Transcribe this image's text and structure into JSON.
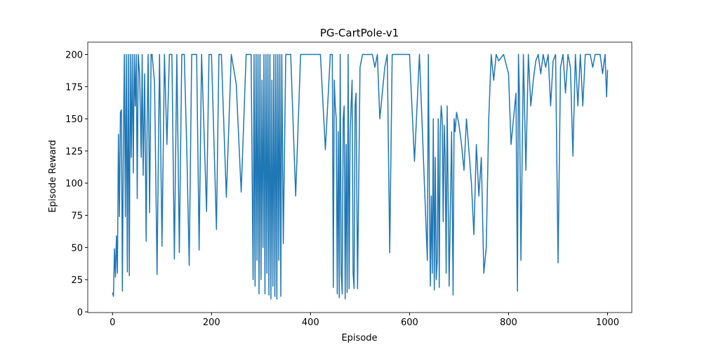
{
  "chart_data": {
    "type": "line",
    "title": "PG-CartPole-v1",
    "xlabel": "Episode",
    "ylabel": "Episode Reward",
    "x": [
      0,
      2,
      4,
      6,
      8,
      10,
      12,
      14,
      16,
      18,
      20,
      22,
      24,
      26,
      28,
      30,
      32,
      34,
      36,
      38,
      40,
      42,
      44,
      46,
      48,
      50,
      52,
      55,
      58,
      60,
      62,
      65,
      68,
      70,
      72,
      75,
      78,
      80,
      85,
      88,
      90,
      95,
      100,
      105,
      110,
      115,
      120,
      125,
      130,
      135,
      140,
      145,
      150,
      155,
      160,
      170,
      175,
      180,
      190,
      195,
      200,
      210,
      215,
      220,
      230,
      240,
      250,
      260,
      270,
      280,
      284,
      286,
      288,
      290,
      292,
      294,
      296,
      298,
      300,
      302,
      304,
      306,
      308,
      310,
      312,
      314,
      316,
      318,
      320,
      322,
      324,
      326,
      328,
      330,
      332,
      334,
      336,
      338,
      340,
      342,
      345,
      350,
      360,
      370,
      380,
      400,
      420,
      430,
      440,
      444,
      446,
      448,
      450,
      452,
      454,
      456,
      458,
      460,
      462,
      464,
      466,
      468,
      470,
      472,
      474,
      476,
      478,
      480,
      482,
      484,
      486,
      488,
      490,
      492,
      495,
      500,
      505,
      510,
      520,
      525,
      530,
      535,
      540,
      545,
      550,
      555,
      560,
      565,
      570,
      580,
      600,
      610,
      620,
      636,
      638,
      640,
      642,
      644,
      646,
      648,
      650,
      652,
      654,
      656,
      658,
      660,
      662,
      664,
      666,
      668,
      670,
      672,
      674,
      676,
      680,
      685,
      688,
      690,
      692,
      695,
      700,
      705,
      710,
      715,
      720,
      725,
      730,
      735,
      740,
      745,
      750,
      755,
      760,
      765,
      770,
      775,
      780,
      790,
      800,
      805,
      810,
      815,
      818,
      820,
      822,
      825,
      830,
      835,
      840,
      845,
      850,
      855,
      860,
      865,
      870,
      875,
      880,
      885,
      890,
      895,
      900,
      905,
      910,
      915,
      920,
      925,
      930,
      935,
      940,
      945,
      950,
      955,
      960,
      965,
      970,
      975,
      980,
      985,
      990,
      995,
      998,
      1000
    ],
    "series": [
      {
        "name": "reward",
        "color": "#1f77b4",
        "values": [
          15,
          12,
          49,
          27,
          59,
          30,
          138,
          74,
          155,
          157,
          16,
          131,
          200,
          74,
          200,
          31,
          200,
          28,
          200,
          120,
          200,
          108,
          200,
          160,
          200,
          88,
          200,
          183,
          120,
          200,
          106,
          185,
          55,
          145,
          200,
          77,
          200,
          200,
          178,
          90,
          29,
          200,
          51,
          200,
          130,
          200,
          200,
          41,
          200,
          46,
          200,
          200,
          128,
          36,
          200,
          200,
          48,
          200,
          78,
          200,
          200,
          64,
          200,
          200,
          89,
          200,
          177,
          93,
          200,
          200,
          25,
          200,
          20,
          200,
          40,
          200,
          14,
          200,
          25,
          180,
          50,
          200,
          14,
          200,
          30,
          200,
          13,
          200,
          10,
          180,
          20,
          200,
          12,
          200,
          10,
          200,
          40,
          200,
          12,
          200,
          53,
          200,
          200,
          90,
          200,
          200,
          200,
          126,
          200,
          200,
          19,
          180,
          160,
          150,
          14,
          140,
          11,
          200,
          30,
          14,
          150,
          160,
          10,
          130,
          15,
          200,
          18,
          140,
          160,
          180,
          30,
          18,
          160,
          170,
          18,
          190,
          200,
          200,
          200,
          200,
          190,
          200,
          150,
          170,
          190,
          200,
          46,
          200,
          200,
          200,
          200,
          117,
          200,
          40,
          200,
          100,
          20,
          90,
          30,
          150,
          17,
          120,
          25,
          40,
          150,
          19,
          140,
          160,
          150,
          70,
          145,
          120,
          30,
          160,
          20,
          140,
          13,
          150,
          140,
          155,
          145,
          130,
          110,
          150,
          125,
          100,
          60,
          130,
          90,
          120,
          30,
          50,
          150,
          200,
          180,
          200,
          195,
          200,
          185,
          130,
          150,
          170,
          16,
          200,
          170,
          40,
          200,
          110,
          200,
          160,
          180,
          195,
          200,
          185,
          200,
          190,
          200,
          160,
          195,
          200,
          38,
          190,
          200,
          170,
          200,
          190,
          121,
          200,
          160,
          200,
          160,
          200,
          200,
          200,
          190,
          200,
          200,
          200,
          185,
          200,
          167,
          188
        ]
      }
    ],
    "xlim": [
      -49.95,
      1048.95
    ],
    "ylim": [
      -0.55,
      209.55
    ],
    "xticks": [
      0,
      200,
      400,
      600,
      800,
      1000
    ],
    "yticks": [
      0,
      25,
      50,
      75,
      100,
      125,
      150,
      175,
      200
    ]
  }
}
